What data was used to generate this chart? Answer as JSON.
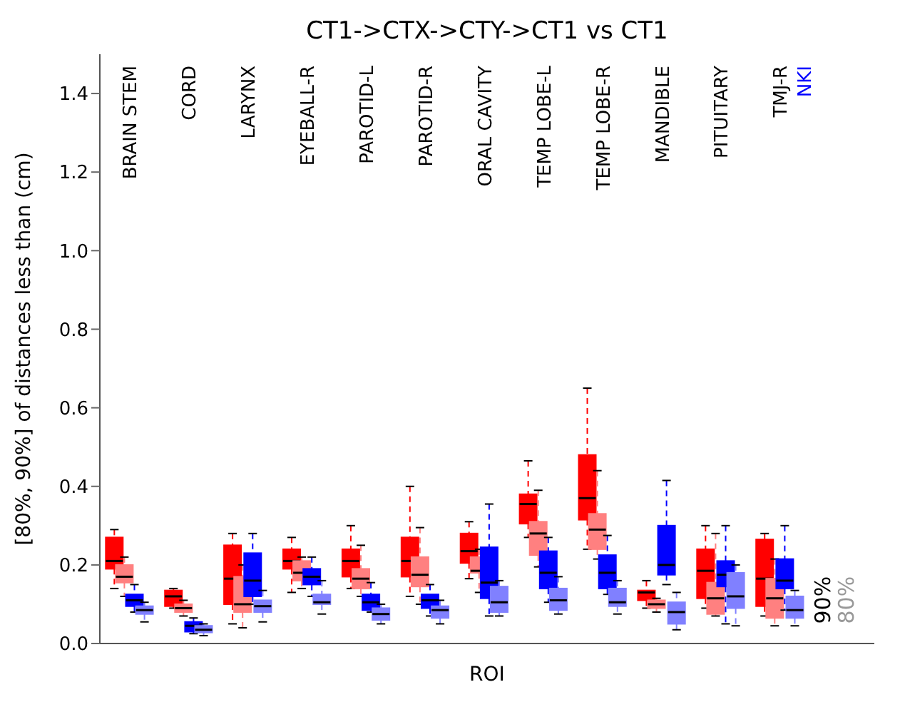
{
  "chart_data": {
    "type": "box",
    "title": "CT1->CTX->CTY->CT1 vs CT1",
    "xlabel": "ROI",
    "ylabel": "[80%, 90%] of distances less than (cm)",
    "categories": [
      "BRAIN STEM",
      "CORD",
      "LARYNX",
      "EYEBALL-R",
      "PAROTID-L",
      "PAROTID-R",
      "ORAL CAVITY",
      "TEMP LOBE-L",
      "TEMP LOBE-R",
      "MANDIBLE",
      "PITUITARY",
      "TMJ-R"
    ],
    "ylim": [
      0,
      1.5
    ],
    "yticks": [
      {
        "value": 0,
        "label": "0.0"
      },
      {
        "value": 0.2,
        "label": "0.2"
      },
      {
        "value": 0.4,
        "label": "0.4"
      },
      {
        "value": 0.6,
        "label": "0.6"
      },
      {
        "value": 0.8,
        "label": "0.8"
      },
      {
        "value": 1,
        "label": "1.0"
      },
      {
        "value": 1.2,
        "label": "1.2"
      },
      {
        "value": 1.4,
        "label": "1.4"
      }
    ],
    "annotations": [
      "NKI",
      "90%",
      "80%"
    ],
    "series": [
      {
        "color": "#ff0000",
        "boxes": [
          {
            "low": 0.14,
            "q1": 0.19,
            "median": 0.21,
            "q3": 0.27,
            "high": 0.29
          },
          {
            "low": 0.09,
            "q1": 0.095,
            "median": 0.12,
            "q3": 0.135,
            "high": 0.14
          },
          {
            "low": 0.05,
            "q1": 0.1,
            "median": 0.165,
            "q3": 0.25,
            "high": 0.28
          },
          {
            "low": 0.13,
            "q1": 0.19,
            "median": 0.21,
            "q3": 0.24,
            "high": 0.27
          },
          {
            "low": 0.14,
            "q1": 0.17,
            "median": 0.21,
            "q3": 0.24,
            "high": 0.3
          },
          {
            "low": 0.12,
            "q1": 0.17,
            "median": 0.21,
            "q3": 0.27,
            "high": 0.4
          },
          {
            "low": 0.165,
            "q1": 0.205,
            "median": 0.235,
            "q3": 0.28,
            "high": 0.31
          },
          {
            "low": 0.27,
            "q1": 0.305,
            "median": 0.355,
            "q3": 0.38,
            "high": 0.465
          },
          {
            "low": 0.24,
            "q1": 0.315,
            "median": 0.37,
            "q3": 0.48,
            "high": 0.65
          },
          {
            "low": 0.09,
            "q1": 0.11,
            "median": 0.13,
            "q3": 0.135,
            "high": 0.16
          },
          {
            "low": 0.09,
            "q1": 0.115,
            "median": 0.185,
            "q3": 0.24,
            "high": 0.3
          },
          {
            "low": 0.07,
            "q1": 0.095,
            "median": 0.165,
            "q3": 0.265,
            "high": 0.28
          }
        ]
      },
      {
        "color": "#ff8080",
        "boxes": [
          {
            "low": 0.12,
            "q1": 0.155,
            "median": 0.17,
            "q3": 0.2,
            "high": 0.22
          },
          {
            "low": 0.07,
            "q1": 0.08,
            "median": 0.09,
            "q3": 0.1,
            "high": 0.11
          },
          {
            "low": 0.04,
            "q1": 0.08,
            "median": 0.1,
            "q3": 0.17,
            "high": 0.2
          },
          {
            "low": 0.14,
            "q1": 0.16,
            "median": 0.18,
            "q3": 0.21,
            "high": 0.22
          },
          {
            "low": 0.12,
            "q1": 0.14,
            "median": 0.165,
            "q3": 0.19,
            "high": 0.25
          },
          {
            "low": 0.1,
            "q1": 0.145,
            "median": 0.175,
            "q3": 0.22,
            "high": 0.295
          },
          {
            "low": 0.13,
            "q1": 0.18,
            "median": 0.185,
            "q3": 0.22,
            "high": 0.24
          },
          {
            "low": 0.195,
            "q1": 0.225,
            "median": 0.28,
            "q3": 0.31,
            "high": 0.39
          },
          {
            "low": 0.215,
            "q1": 0.24,
            "median": 0.29,
            "q3": 0.33,
            "high": 0.44
          },
          {
            "low": 0.08,
            "q1": 0.09,
            "median": 0.1,
            "q3": 0.11,
            "high": 0.115
          },
          {
            "low": 0.07,
            "q1": 0.075,
            "median": 0.115,
            "q3": 0.155,
            "high": 0.28
          },
          {
            "low": 0.045,
            "q1": 0.065,
            "median": 0.115,
            "q3": 0.165,
            "high": 0.215
          }
        ]
      },
      {
        "color": "#0000ff",
        "boxes": [
          {
            "low": 0.08,
            "q1": 0.095,
            "median": 0.11,
            "q3": 0.125,
            "high": 0.15
          },
          {
            "low": 0.025,
            "q1": 0.03,
            "median": 0.045,
            "q3": 0.055,
            "high": 0.065
          },
          {
            "low": 0.1,
            "q1": 0.12,
            "median": 0.16,
            "q3": 0.23,
            "high": 0.28
          },
          {
            "low": 0.12,
            "q1": 0.15,
            "median": 0.17,
            "q3": 0.19,
            "high": 0.22
          },
          {
            "low": 0.08,
            "q1": 0.085,
            "median": 0.105,
            "q3": 0.125,
            "high": 0.155
          },
          {
            "low": 0.07,
            "q1": 0.09,
            "median": 0.11,
            "q3": 0.125,
            "high": 0.15
          },
          {
            "low": 0.07,
            "q1": 0.115,
            "median": 0.155,
            "q3": 0.245,
            "high": 0.355
          },
          {
            "low": 0.105,
            "q1": 0.14,
            "median": 0.18,
            "q3": 0.235,
            "high": 0.27
          },
          {
            "low": 0.125,
            "q1": 0.14,
            "median": 0.18,
            "q3": 0.225,
            "high": 0.275
          },
          {
            "low": 0.15,
            "q1": 0.175,
            "median": 0.2,
            "q3": 0.3,
            "high": 0.415
          },
          {
            "low": 0.05,
            "q1": 0.145,
            "median": 0.175,
            "q3": 0.21,
            "high": 0.3
          },
          {
            "low": 0.085,
            "q1": 0.14,
            "median": 0.16,
            "q3": 0.215,
            "high": 0.3
          }
        ]
      },
      {
        "color": "#8080ff",
        "boxes": [
          {
            "low": 0.055,
            "q1": 0.075,
            "median": 0.085,
            "q3": 0.095,
            "high": 0.105
          },
          {
            "low": 0.02,
            "q1": 0.028,
            "median": 0.035,
            "q3": 0.045,
            "high": 0.05
          },
          {
            "low": 0.055,
            "q1": 0.08,
            "median": 0.095,
            "q3": 0.11,
            "high": 0.135
          },
          {
            "low": 0.075,
            "q1": 0.1,
            "median": 0.105,
            "q3": 0.125,
            "high": 0.16
          },
          {
            "low": 0.05,
            "q1": 0.06,
            "median": 0.075,
            "q3": 0.09,
            "high": 0.1
          },
          {
            "low": 0.05,
            "q1": 0.065,
            "median": 0.085,
            "q3": 0.095,
            "high": 0.11
          },
          {
            "low": 0.07,
            "q1": 0.08,
            "median": 0.105,
            "q3": 0.145,
            "high": 0.16
          },
          {
            "low": 0.075,
            "q1": 0.085,
            "median": 0.11,
            "q3": 0.14,
            "high": 0.17
          },
          {
            "low": 0.075,
            "q1": 0.095,
            "median": 0.105,
            "q3": 0.14,
            "high": 0.16
          },
          {
            "low": 0.035,
            "q1": 0.05,
            "median": 0.08,
            "q3": 0.105,
            "high": 0.13
          },
          {
            "low": 0.045,
            "q1": 0.09,
            "median": 0.12,
            "q3": 0.18,
            "high": 0.2
          },
          {
            "low": 0.045,
            "q1": 0.065,
            "median": 0.085,
            "q3": 0.12,
            "high": 0.135
          }
        ]
      }
    ]
  }
}
